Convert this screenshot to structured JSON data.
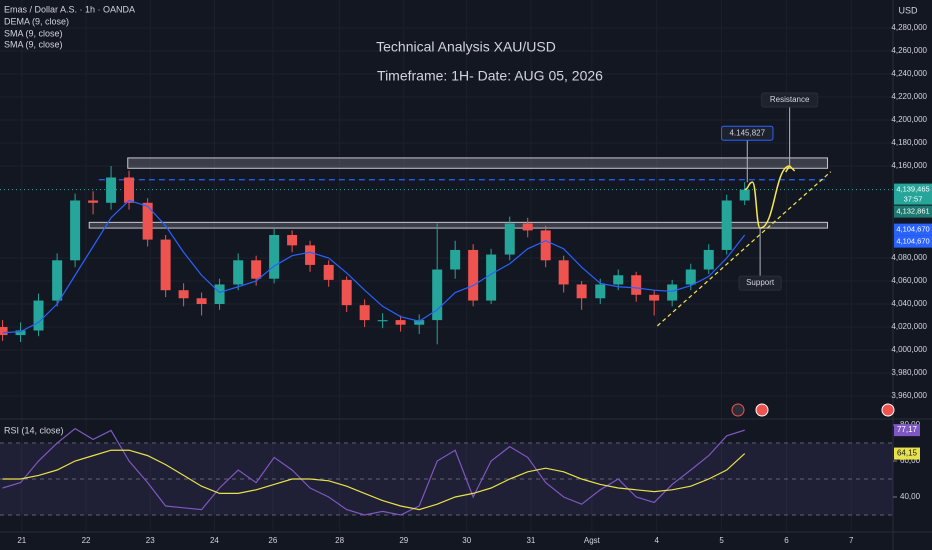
{
  "chart_data": {
    "type": "candlestick",
    "header": "Emas / Dollar A.S. · 1h · OANDA",
    "indicators": [
      "DEMA (9, close)",
      "SMA (9, close)",
      "SMA (9, close)"
    ],
    "title": "Technical Analysis XAU/USD",
    "subtitle": "Timeframe: 1H- Date: AUG 05, 2026",
    "currency": "USD",
    "x": [
      -0.3,
      -0.02,
      0.26,
      0.55,
      0.83,
      1.11,
      1.39,
      1.67,
      1.96,
      2.24,
      2.52,
      2.8,
      3.08,
      3.37,
      3.65,
      3.93,
      4.21,
      4.49,
      4.78,
      5.06,
      5.34,
      5.62,
      5.9,
      6.19,
      6.47,
      6.75,
      7.03,
      7.31,
      7.6,
      7.88,
      8.16,
      8.44,
      8.72,
      9.01,
      9.29,
      9.57,
      9.85,
      10.13,
      10.42,
      10.7,
      10.98,
      11.26
    ],
    "xlim": [
      -0.34,
      13.57
    ],
    "xticks": [
      {
        "value": 0,
        "label": "21"
      },
      {
        "value": 1,
        "label": "22"
      },
      {
        "value": 2,
        "label": "23"
      },
      {
        "value": 3,
        "label": "24"
      },
      {
        "value": 3.91,
        "label": "26"
      },
      {
        "value": 4.95,
        "label": "28"
      },
      {
        "value": 5.95,
        "label": "29"
      },
      {
        "value": 6.93,
        "label": "30"
      },
      {
        "value": 7.93,
        "label": "31"
      },
      {
        "value": 8.88,
        "label": "Agst"
      },
      {
        "value": 9.89,
        "label": "4"
      },
      {
        "value": 10.9,
        "label": "5"
      },
      {
        "value": 11.91,
        "label": "6"
      },
      {
        "value": 12.92,
        "label": "7"
      }
    ],
    "ylim": [
      3940900,
      4304300
    ],
    "yticks": [
      {
        "value": 3960000,
        "label": "3,960,000"
      },
      {
        "value": 3980000,
        "label": "3,980,000"
      },
      {
        "value": 4000000,
        "label": "4,000,000"
      },
      {
        "value": 4020000,
        "label": "4,020,000"
      },
      {
        "value": 4040000,
        "label": "4,040,000"
      },
      {
        "value": 4060000,
        "label": "4,060,000"
      },
      {
        "value": 4080000,
        "label": "4,080,000"
      },
      {
        "value": 4160000,
        "label": "4,160,000"
      },
      {
        "value": 4180000,
        "label": "4,180,000"
      },
      {
        "value": 4200000,
        "label": "4,200,000"
      },
      {
        "value": 4220000,
        "label": "4,220,000"
      },
      {
        "value": 4240000,
        "label": "4,240,000"
      },
      {
        "value": 4260000,
        "label": "4,260,000"
      },
      {
        "value": 4280000,
        "label": "4,280,000"
      }
    ],
    "open": [
      4020000,
      4013000,
      4017000,
      4043000,
      4078000,
      4130000,
      4128000,
      4150000,
      4128000,
      4096000,
      4052000,
      4045000,
      4040000,
      4057000,
      4078000,
      4062000,
      4100000,
      4091000,
      4074000,
      4061000,
      4039000,
      4025000,
      4026000,
      4022000,
      4026000,
      4070000,
      4087000,
      4043000,
      4083000,
      4110000,
      4104000,
      4078000,
      4057000,
      4045000,
      4057000,
      4065000,
      4048000,
      4043000,
      4057000,
      4070000,
      4087000,
      4130000
    ],
    "high": [
      4026000,
      4024000,
      4049000,
      4084000,
      4136000,
      4138000,
      4160000,
      4156000,
      4132000,
      4100000,
      4058000,
      4050000,
      4062000,
      4084000,
      4082000,
      4106000,
      4104000,
      4095000,
      4078000,
      4064000,
      4044000,
      4032000,
      4030000,
      4031000,
      4110000,
      4095000,
      4092000,
      4088000,
      4116000,
      4115000,
      4108000,
      4082000,
      4060000,
      4062000,
      4070000,
      4068000,
      4052000,
      4061000,
      4075000,
      4092000,
      4135000,
      4146000
    ],
    "low": [
      4008000,
      4007000,
      4012000,
      4038000,
      4072000,
      4118000,
      4122000,
      4122000,
      4090000,
      4046000,
      4038000,
      4030000,
      4035000,
      4052000,
      4056000,
      4058000,
      4085000,
      4068000,
      4055000,
      4033000,
      4020000,
      4019000,
      4016000,
      4014000,
      4005000,
      4062000,
      4038000,
      4040000,
      4078000,
      4098000,
      4072000,
      4050000,
      4035000,
      4040000,
      4052000,
      4042000,
      4030000,
      4038000,
      4052000,
      4066000,
      4083000,
      4126000
    ],
    "close": [
      4013000,
      4017000,
      4043000,
      4078000,
      4130000,
      4128000,
      4150000,
      4128000,
      4096000,
      4052000,
      4045000,
      4040000,
      4057000,
      4078000,
      4062000,
      4100000,
      4091000,
      4074000,
      4061000,
      4039000,
      4026000,
      4026000,
      4022000,
      4026000,
      4070000,
      4087000,
      4043000,
      4083000,
      4110000,
      4104000,
      4078000,
      4057000,
      4045000,
      4057000,
      4065000,
      4048000,
      4043000,
      4057000,
      4070000,
      4087000,
      4130000,
      4139465
    ],
    "up_color": "#26a69a",
    "down_color": "#ef5350",
    "ma": {
      "color": "#2962ff",
      "values": [
        4015000,
        4016000,
        4024000,
        4040000,
        4065000,
        4090000,
        4115000,
        4130000,
        4125000,
        4108000,
        4085000,
        4065000,
        4050000,
        4055000,
        4060000,
        4073000,
        4082000,
        4085000,
        4080000,
        4067000,
        4052000,
        4038000,
        4029000,
        4025000,
        4035000,
        4050000,
        4056000,
        4066000,
        4075000,
        4088000,
        4095000,
        4088000,
        4072000,
        4058000,
        4055000,
        4054000,
        4052000,
        4051000,
        4056000,
        4064000,
        4080000,
        4100000
      ]
    },
    "zones": [
      {
        "x": [
          1.65,
          12.55
        ],
        "y": [
          4158000,
          4167000
        ]
      },
      {
        "x": [
          1.05,
          12.55
        ],
        "y": [
          4106000,
          4111000
        ]
      }
    ],
    "dashed_level": {
      "x": [
        1.2,
        12.55
      ],
      "value": 4148000,
      "color": "#2962ff"
    },
    "trendline": {
      "x": [
        9.9,
        12.6
      ],
      "y": [
        4021000,
        4155000
      ],
      "color": "#f7e84f"
    },
    "projection": {
      "x": [
        11.26,
        11.38,
        11.5,
        11.96
      ],
      "y": [
        4139465,
        4146000,
        4106000,
        4160000
      ],
      "color": "#f7e84f"
    },
    "annotations": [
      {
        "label": "4.145,827",
        "x": 11.3,
        "y": 4145827
      },
      {
        "label": "Resistance",
        "x": 11.96,
        "y": 4160000
      },
      {
        "label": "Support",
        "x": 11.5,
        "y": 4106000
      }
    ],
    "price_tags": [
      {
        "value": 4139465,
        "label": "4,139,465",
        "color": "#26a69a"
      },
      {
        "value": 4132861,
        "label": "4,132,861",
        "color": "#1e7a70"
      },
      {
        "value": 4104670,
        "label": "4,104,670",
        "color": "#2962ff"
      },
      {
        "value": 4104670,
        "label": "4,104,670",
        "color": "#2962ff"
      }
    ],
    "countdown": "37:57",
    "rsi": {
      "title": "RSI (14, close)",
      "values": [
        45,
        48,
        60,
        70,
        78,
        72,
        77,
        60,
        48,
        35,
        34,
        33,
        45,
        55,
        48,
        62,
        55,
        45,
        40,
        33,
        30,
        32,
        30,
        35,
        60,
        66,
        40,
        60,
        68,
        62,
        48,
        40,
        36,
        44,
        50,
        40,
        37,
        47,
        55,
        63,
        74,
        77.17
      ],
      "ma": [
        50,
        50,
        52,
        55,
        60,
        63,
        66,
        66,
        63,
        58,
        52,
        46,
        42,
        42,
        44,
        47,
        50,
        50,
        49,
        46,
        42,
        38,
        35,
        33,
        36,
        40,
        42,
        45,
        50,
        54,
        56,
        54,
        50,
        47,
        45,
        44,
        43,
        44,
        46,
        50,
        55,
        64.15
      ],
      "color": "#7e57c2",
      "ma_color": "#e8e24a",
      "ylim": [
        21.1,
        82.8
      ],
      "yticks": [
        {
          "value": 40,
          "label": "40,00"
        },
        {
          "value": 60,
          "label": "60,00"
        },
        {
          "value": 80,
          "label": "80,00"
        }
      ],
      "bands": [
        30,
        50,
        70
      ],
      "last_labels": [
        {
          "value": 77.17,
          "label": "77,17"
        },
        {
          "value": 64.15,
          "label": "64,15"
        }
      ]
    }
  }
}
